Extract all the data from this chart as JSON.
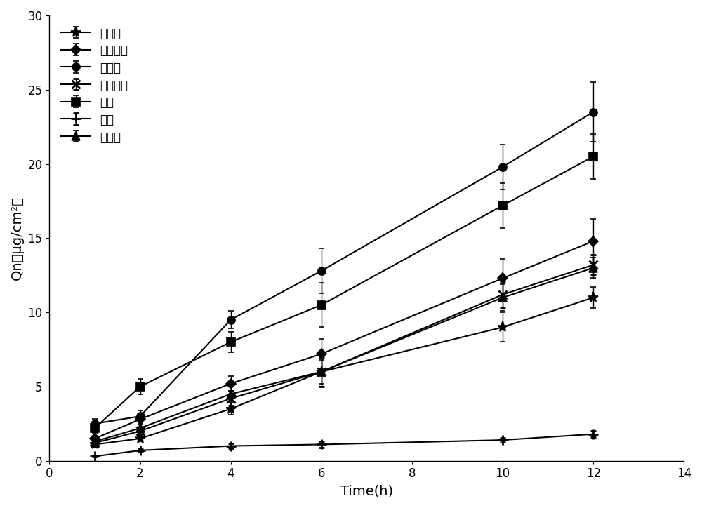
{
  "title": "",
  "xlabel": "Time(h)",
  "ylabel": "Qn（μg/cm²）",
  "xlim": [
    0,
    14
  ],
  "ylim": [
    0,
    30
  ],
  "xticks": [
    0,
    2,
    4,
    6,
    8,
    10,
    12,
    14
  ],
  "yticks": [
    0,
    5,
    10,
    15,
    20,
    25,
    30
  ],
  "time_points": [
    1,
    2,
    4,
    6,
    10,
    12
  ],
  "series": [
    {
      "label": "鳄梨油",
      "marker": "*",
      "data": [
        1.1,
        1.5,
        3.5,
        6.0,
        9.0,
        11.0
      ],
      "yerr": [
        0.15,
        0.2,
        0.4,
        0.8,
        1.0,
        0.7
      ]
    },
    {
      "label": "乳木果油",
      "marker": "D",
      "data": [
        1.5,
        2.8,
        5.2,
        7.2,
        12.3,
        14.8
      ],
      "yerr": [
        0.2,
        0.3,
        0.5,
        1.0,
        1.3,
        1.5
      ]
    },
    {
      "label": "桡叶油",
      "marker": "o",
      "data": [
        2.5,
        3.0,
        9.5,
        12.8,
        19.8,
        23.5
      ],
      "yerr": [
        0.3,
        0.4,
        0.6,
        1.5,
        1.5,
        2.0
      ]
    },
    {
      "label": "荷荷巴油",
      "marker": "x",
      "data": [
        1.2,
        2.0,
        4.2,
        6.0,
        11.2,
        13.2
      ],
      "yerr": [
        0.15,
        0.25,
        0.5,
        1.0,
        0.9,
        0.7
      ]
    },
    {
      "label": "氮醐",
      "marker": "s",
      "data": [
        2.2,
        5.0,
        8.0,
        10.5,
        17.2,
        20.5
      ],
      "yerr": [
        0.3,
        0.5,
        0.7,
        1.5,
        1.5,
        1.5
      ]
    },
    {
      "label": "空白",
      "marker": "+",
      "data": [
        0.3,
        0.7,
        1.0,
        1.1,
        1.4,
        1.8
      ],
      "yerr": [
        0.05,
        0.1,
        0.15,
        0.2,
        0.15,
        0.2
      ]
    },
    {
      "label": "杏仁油",
      "marker": "^",
      "data": [
        1.3,
        2.2,
        4.5,
        6.0,
        11.0,
        13.0
      ],
      "yerr": [
        0.15,
        0.25,
        0.5,
        1.0,
        0.9,
        0.7
      ]
    }
  ],
  "line_color": "#000000",
  "background_color": "#ffffff",
  "fontsize_label": 14,
  "fontsize_tick": 12,
  "fontsize_legend": 12
}
